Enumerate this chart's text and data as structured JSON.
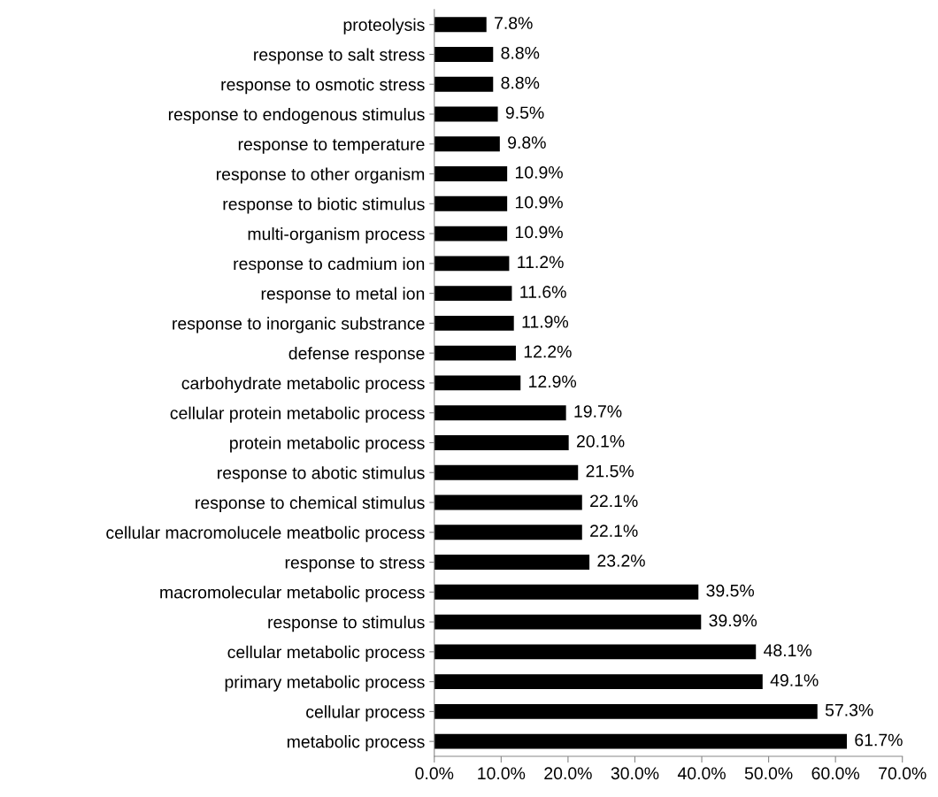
{
  "chart_data": {
    "type": "bar",
    "orientation": "horizontal",
    "categories": [
      "proteolysis",
      "response to salt stress",
      "response to osmotic stress",
      "response to endogenous stimulus",
      "response to temperature",
      "response to other organism",
      "response to biotic stimulus",
      "multi-organism process",
      "response to cadmium ion",
      "response to metal ion",
      "response to inorganic substrance",
      "defense response",
      "carbohydrate metabolic process",
      "cellular protein metabolic process",
      "protein metabolic process",
      "response to abotic stimulus",
      "response to chemical stimulus",
      "cellular macromolucele meatbolic process",
      "response to stress",
      "macromolecular metabolic process",
      "response to stimulus",
      "cellular metabolic process",
      "primary metabolic process",
      "cellular process",
      "metabolic process"
    ],
    "values": [
      7.8,
      8.8,
      8.8,
      9.5,
      9.8,
      10.9,
      10.9,
      10.9,
      11.2,
      11.6,
      11.9,
      12.2,
      12.9,
      19.7,
      20.1,
      21.5,
      22.1,
      22.1,
      23.2,
      39.5,
      39.9,
      48.1,
      49.1,
      57.3,
      61.7
    ],
    "value_labels": [
      "7.8%",
      "8.8%",
      "8.8%",
      "9.5%",
      "9.8%",
      "10.9%",
      "10.9%",
      "10.9%",
      "11.2%",
      "11.6%",
      "11.9%",
      "12.2%",
      "12.9%",
      "19.7%",
      "20.1%",
      "21.5%",
      "22.1%",
      "22.1%",
      "23.2%",
      "39.5%",
      "39.9%",
      "48.1%",
      "49.1%",
      "57.3%",
      "61.7%"
    ],
    "color": "#000000",
    "xlim": [
      0,
      70
    ],
    "xticks": [
      {
        "value": 0,
        "label": "0.0%"
      },
      {
        "value": 10,
        "label": "10.0%"
      },
      {
        "value": 20,
        "label": "20.0%"
      },
      {
        "value": 30,
        "label": "30.0%"
      },
      {
        "value": 40,
        "label": "40.0%"
      },
      {
        "value": 50,
        "label": "50.0%"
      },
      {
        "value": 60,
        "label": "60.0%"
      },
      {
        "value": 70,
        "label": "70.0%"
      }
    ],
    "grid": false
  }
}
